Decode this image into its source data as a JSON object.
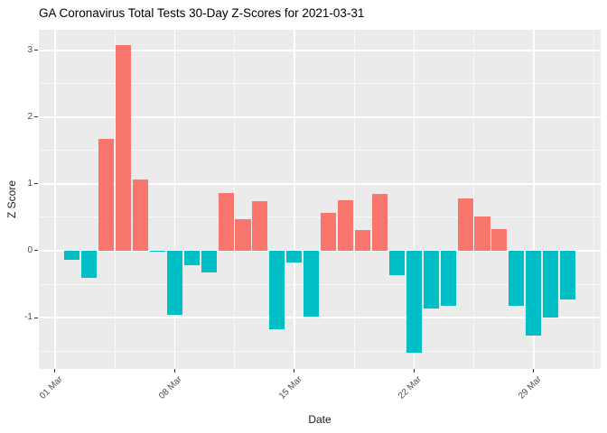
{
  "title": "GA Coronavirus Total Tests 30-Day Z-Scores for 2021-03-31",
  "chart_data": {
    "type": "bar",
    "title": "GA Coronavirus Total Tests 30-Day Z-Scores for 2021-03-31",
    "xlabel": "Date",
    "ylabel": "Z Score",
    "legend": "none",
    "grid": "major-and-minor-white-on-gray",
    "x_tick_labels": [
      "01 Mar",
      "08 Mar",
      "15 Mar",
      "22 Mar",
      "29 Mar"
    ],
    "x_tick_days": [
      1,
      8,
      15,
      22,
      29
    ],
    "x_minor_days": [
      4.5,
      11.5,
      18.5,
      25.5,
      32.5
    ],
    "y_ticks": [
      3,
      2,
      1,
      0,
      -1
    ],
    "y_minor": [
      2.5,
      1.5,
      0.5,
      -0.5,
      -1.5
    ],
    "ylim": [
      -1.77,
      3.31
    ],
    "xlim_days": [
      0.06,
      32.92
    ],
    "bar_width_days": 0.9,
    "colors": {
      "positive": "#F8766D",
      "negative": "#00BFC4",
      "panel_bg": "#EBEBEB",
      "gridline": "#FFFFFF",
      "tick_text": "#4D4D4D",
      "axis_title_text": "#1A1A1A",
      "title_text": "#000000",
      "tick_mark": "#333333"
    },
    "bars": [
      {
        "date": "2021-03-02",
        "value": -0.14
      },
      {
        "date": "2021-03-03",
        "value": -0.41
      },
      {
        "date": "2021-03-04",
        "value": 1.68
      },
      {
        "date": "2021-03-05",
        "value": 3.08
      },
      {
        "date": "2021-03-06",
        "value": 1.07
      },
      {
        "date": "2021-03-07",
        "value": -0.02
      },
      {
        "date": "2021-03-08",
        "value": -0.96
      },
      {
        "date": "2021-03-09",
        "value": -0.21
      },
      {
        "date": "2021-03-10",
        "value": -0.33
      },
      {
        "date": "2021-03-11",
        "value": 0.87
      },
      {
        "date": "2021-03-12",
        "value": 0.47
      },
      {
        "date": "2021-03-13",
        "value": 0.74
      },
      {
        "date": "2021-03-14",
        "value": -1.18
      },
      {
        "date": "2021-03-15",
        "value": -0.18
      },
      {
        "date": "2021-03-16",
        "value": -0.99
      },
      {
        "date": "2021-03-17",
        "value": 0.57
      },
      {
        "date": "2021-03-18",
        "value": 0.76
      },
      {
        "date": "2021-03-19",
        "value": 0.31
      },
      {
        "date": "2021-03-20",
        "value": 0.85
      },
      {
        "date": "2021-03-21",
        "value": -0.36
      },
      {
        "date": "2021-03-22",
        "value": -1.53
      },
      {
        "date": "2021-03-23",
        "value": -0.86
      },
      {
        "date": "2021-03-24",
        "value": -0.82
      },
      {
        "date": "2021-03-25",
        "value": 0.78
      },
      {
        "date": "2021-03-26",
        "value": 0.52
      },
      {
        "date": "2021-03-27",
        "value": 0.33
      },
      {
        "date": "2021-03-28",
        "value": -0.83
      },
      {
        "date": "2021-03-29",
        "value": -1.27
      },
      {
        "date": "2021-03-30",
        "value": -1.0
      },
      {
        "date": "2021-03-31",
        "value": -0.73
      }
    ]
  }
}
